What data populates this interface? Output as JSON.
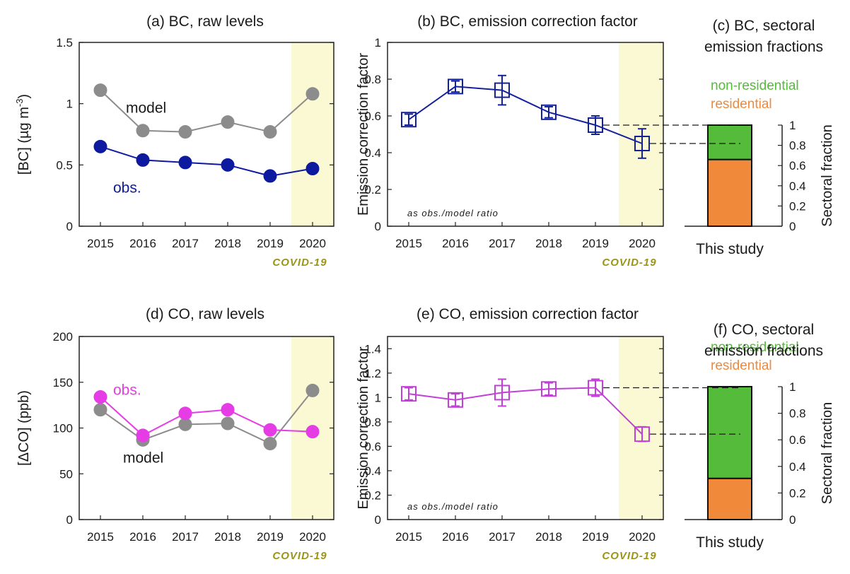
{
  "colors": {
    "model": "#8c8c8c",
    "bc_obs": "#0d1aa0",
    "co_obs": "#e63ce6",
    "bc_ecf": "#13219a",
    "co_ecf": "#c23fd8",
    "covid_shade": "#fbf9d3",
    "covid_text": "#9c9418",
    "non_residential": "#55bb3a",
    "residential": "#f0893a",
    "dashed": "#1a1a1a"
  },
  "chart_data": [
    {
      "id": "a",
      "type": "line",
      "title": "(a) BC, raw levels",
      "xlabel": "",
      "ylabel": "[BC] (µg m⁻³)",
      "ylabel_parts": {
        "main": "[BC] (µg m",
        "sup": "-3",
        "end": ")"
      },
      "categories": [
        "2015",
        "2016",
        "2017",
        "2018",
        "2019",
        "2020"
      ],
      "ylim": [
        0,
        1.5
      ],
      "yticks": [
        "0",
        "0.5",
        "1",
        "1.5"
      ],
      "series": [
        {
          "name": "model",
          "color_key": "model",
          "values": [
            1.11,
            0.78,
            0.77,
            0.85,
            0.77,
            1.08
          ]
        },
        {
          "name": "obs.",
          "color_key": "bc_obs",
          "values": [
            0.65,
            0.54,
            0.52,
            0.5,
            0.41,
            0.47
          ]
        }
      ],
      "highlight": {
        "category": "2020",
        "label": "COVID-19"
      },
      "grid": false
    },
    {
      "id": "b",
      "type": "line",
      "title": "(b) BC, emission correction factor",
      "xlabel": "",
      "ylabel": "Emission correction factor",
      "categories": [
        "2015",
        "2016",
        "2017",
        "2018",
        "2019",
        "2020"
      ],
      "ylim": [
        0,
        1
      ],
      "yticks": [
        "0",
        "0.2",
        "0.4",
        "0.6",
        "0.8",
        "1"
      ],
      "series": [
        {
          "name": "",
          "color_key": "bc_ecf",
          "values": [
            0.58,
            0.76,
            0.74,
            0.62,
            0.55,
            0.45
          ],
          "error": [
            0.03,
            0.03,
            0.08,
            0.03,
            0.05,
            0.08
          ]
        }
      ],
      "note": "as obs./model ratio",
      "highlight": {
        "category": "2020",
        "label": "COVID-19"
      },
      "grid": false
    },
    {
      "id": "c",
      "type": "bar",
      "title_lines": [
        "(c) BC, sectoral",
        "emission fractions"
      ],
      "category": "This study",
      "ylabel": "Sectoral fraction",
      "ylim": [
        0,
        1
      ],
      "yticks": [
        "0",
        "0.2",
        "0.4",
        "0.6",
        "0.8",
        "1"
      ],
      "stack": [
        {
          "name": "residential",
          "color_key": "residential",
          "value": 0.66
        },
        {
          "name": "non-residential",
          "color_key": "non_residential",
          "value": 0.34
        }
      ],
      "dashed_links": [
        {
          "from_year": "2019",
          "ecf": 0.55,
          "fraction": 1.0
        },
        {
          "from_year": "2020",
          "ecf": 0.45,
          "fraction": 0.82
        }
      ]
    },
    {
      "id": "d",
      "type": "line",
      "title": "(d) CO, raw levels",
      "xlabel": "",
      "ylabel": "[ΔCO] (ppb)",
      "categories": [
        "2015",
        "2016",
        "2017",
        "2018",
        "2019",
        "2020"
      ],
      "ylim": [
        0,
        200
      ],
      "yticks": [
        "0",
        "50",
        "100",
        "150",
        "200"
      ],
      "series": [
        {
          "name": "model",
          "color_key": "model",
          "values": [
            120,
            87,
            104,
            105,
            83,
            141
          ]
        },
        {
          "name": "obs.",
          "color_key": "co_obs",
          "values": [
            134,
            92,
            116,
            120,
            98,
            96
          ]
        }
      ],
      "highlight": {
        "category": "2020",
        "label": "COVID-19"
      },
      "grid": false
    },
    {
      "id": "e",
      "type": "line",
      "title": "(e) CO, emission correction factor",
      "xlabel": "",
      "ylabel": "Emission correction factor",
      "categories": [
        "2015",
        "2016",
        "2017",
        "2018",
        "2019",
        "2020"
      ],
      "ylim": [
        0,
        1.5
      ],
      "yticks": [
        "0",
        "0.2",
        "0.4",
        "0.6",
        "0.8",
        "1",
        "1.2",
        "1.4"
      ],
      "series": [
        {
          "name": "",
          "color_key": "co_ecf",
          "values": [
            1.03,
            0.98,
            1.04,
            1.07,
            1.08,
            0.7
          ],
          "error": [
            0.05,
            0.05,
            0.11,
            0.05,
            0.07,
            0.06
          ]
        }
      ],
      "note": "as obs./model ratio",
      "highlight": {
        "category": "2020",
        "label": "COVID-19"
      },
      "grid": false
    },
    {
      "id": "f",
      "type": "bar",
      "title_lines": [
        "(f) CO, sectoral",
        "emission fractions"
      ],
      "category": "This study",
      "ylabel": "Sectoral fraction",
      "ylim": [
        0,
        1
      ],
      "yticks": [
        "0",
        "0.2",
        "0.4",
        "0.6",
        "0.8",
        "1"
      ],
      "stack": [
        {
          "name": "residential",
          "color_key": "residential",
          "value": 0.31
        },
        {
          "name": "non-residential",
          "color_key": "non_residential",
          "value": 0.69
        }
      ],
      "dashed_links": [
        {
          "from_year": "2019",
          "ecf": 1.08,
          "fraction": 1.0
        },
        {
          "from_year": "2020",
          "ecf": 0.7,
          "fraction": 0.65
        }
      ]
    }
  ]
}
